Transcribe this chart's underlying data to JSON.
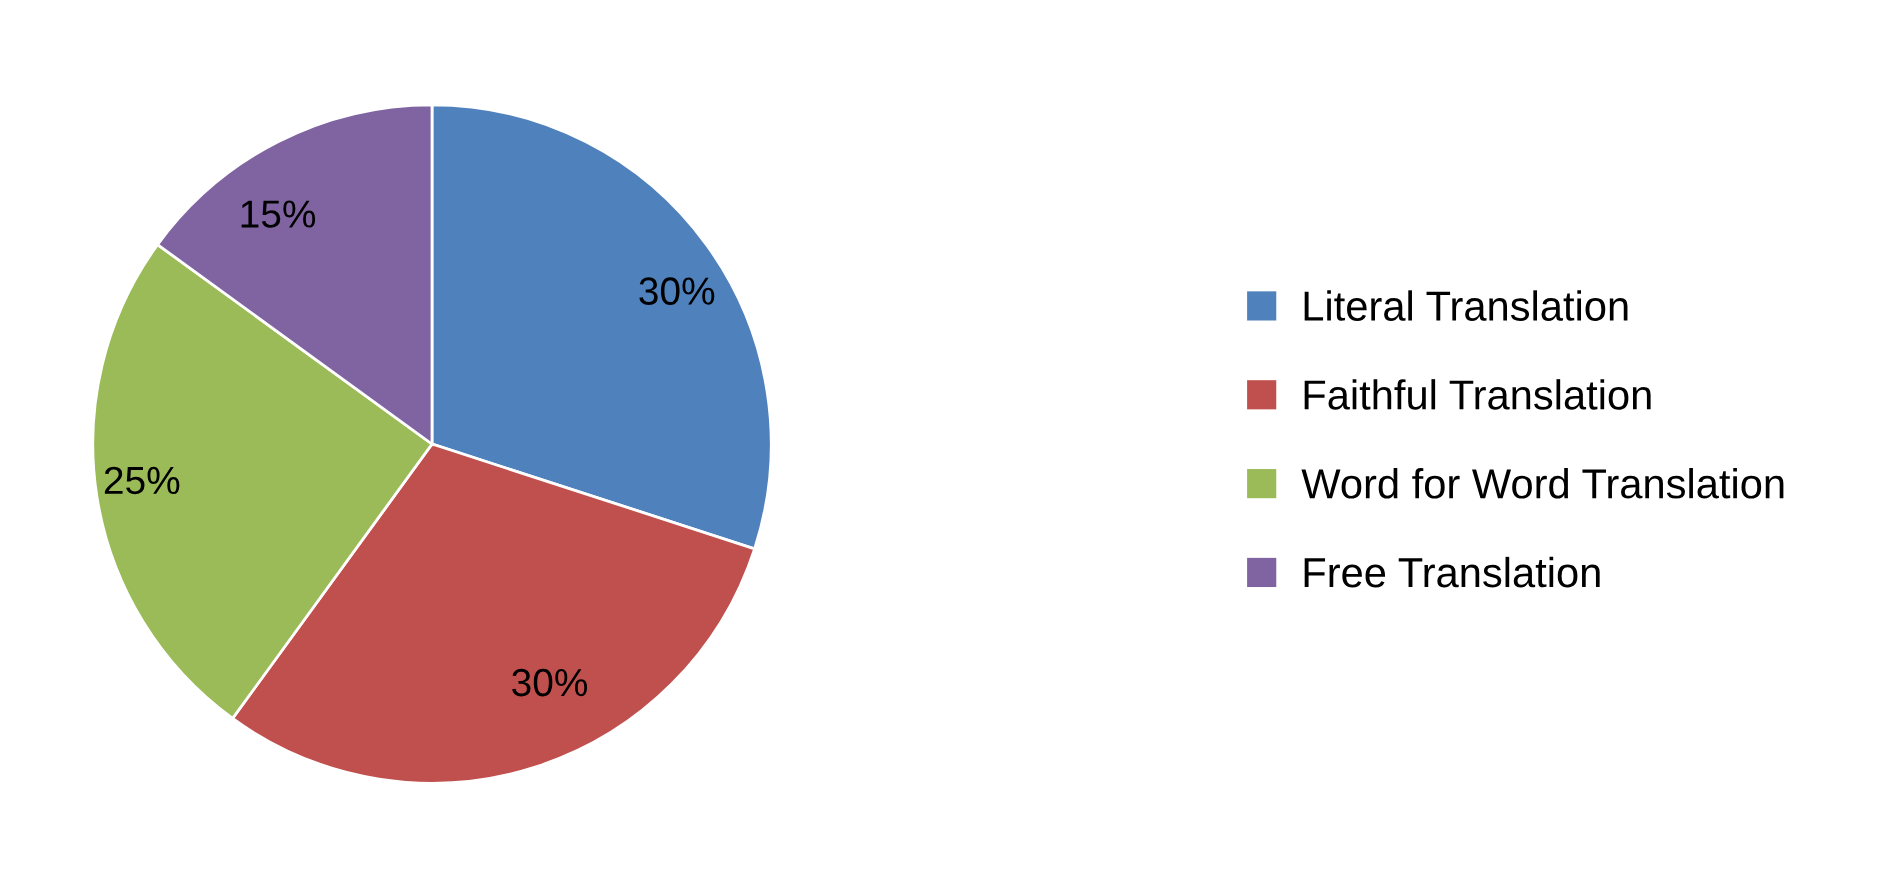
{
  "chart_data": {
    "type": "pie",
    "categories": [
      "Literal Translation",
      "Faithful Translation",
      "Word for Word Translation",
      "Free Translation"
    ],
    "values": [
      30,
      30,
      25,
      15
    ],
    "colors": [
      "#4f81bd",
      "#c0504d",
      "#9bbb59",
      "#8064a2"
    ],
    "value_labels": [
      "30%",
      "30%",
      "25%",
      "15%"
    ],
    "legend": "right"
  }
}
